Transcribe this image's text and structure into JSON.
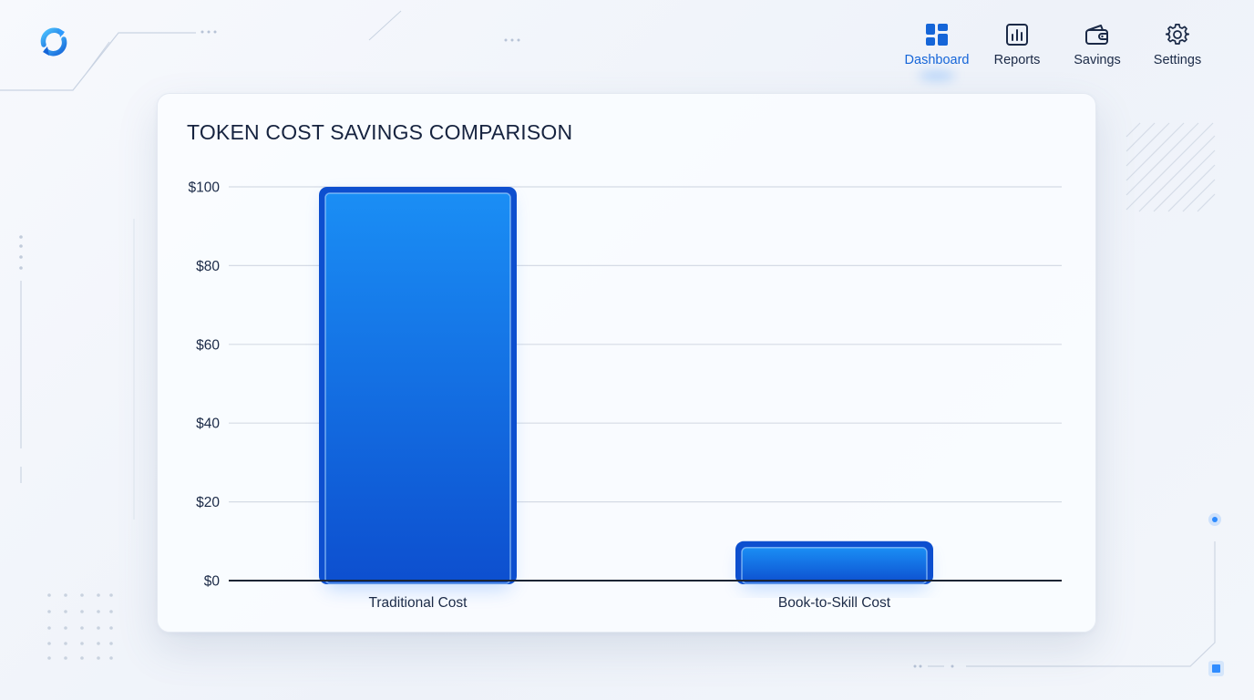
{
  "nav": {
    "items": [
      {
        "label": "Dashboard",
        "icon": "dashboard-grid-icon",
        "active": true
      },
      {
        "label": "Reports",
        "icon": "bar-chart-icon",
        "active": false
      },
      {
        "label": "Savings",
        "icon": "wallet-icon",
        "active": false
      },
      {
        "label": "Settings",
        "icon": "gear-icon",
        "active": false
      }
    ]
  },
  "colors": {
    "accent": "#1565d8",
    "bar_top": "#1a8ef5",
    "bar_bottom": "#0d4fcf",
    "gridline": "#d5dbe5",
    "axis": "#1b2434"
  },
  "chart_data": {
    "type": "bar",
    "title": "TOKEN COST SAVINGS COMPARISON",
    "categories": [
      "Traditional Cost",
      "Book-to-Skill Cost"
    ],
    "values": [
      100,
      10
    ],
    "ylim": [
      0,
      100
    ],
    "yticks": [
      0,
      20,
      40,
      60,
      80,
      100
    ],
    "ytick_labels": [
      "$0",
      "$20",
      "$40",
      "$60",
      "$80",
      "$100"
    ],
    "grid": true,
    "legend": "none"
  }
}
